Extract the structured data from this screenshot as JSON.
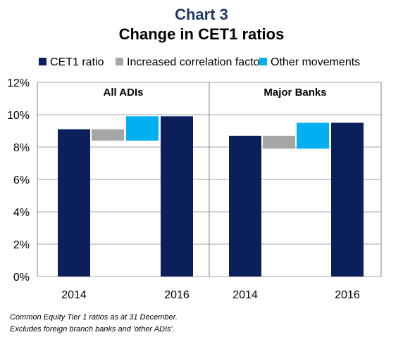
{
  "chart": {
    "title": "Chart 3",
    "subtitle": "Change in CET1 ratios",
    "footnotes": [
      "Common Equity Tier 1 ratios as at 31 December.",
      "Excludes foreign branch banks and 'other ADIs'."
    ]
  },
  "colors": {
    "title": "#1f3864",
    "cet1": "#0b1f5b",
    "correlation": "#a6a6a6",
    "other": "#00b0f0",
    "grid": "#a6a6a6",
    "axis": "#7f7f7f"
  },
  "chart_data": {
    "type": "bar",
    "subtype": "waterfall",
    "title": "Chart 3",
    "subtitle": "Change in CET1 ratios",
    "legend": {
      "placement": "top",
      "entries": [
        {
          "name": "CET1 ratio",
          "color": "#0b1f5b"
        },
        {
          "name": "Increased correlation factor",
          "color": "#a6a6a6"
        },
        {
          "name": "Other movements",
          "color": "#00b0f0"
        }
      ]
    },
    "ylim": [
      0,
      12
    ],
    "yticks": [
      0,
      2,
      4,
      6,
      8,
      10,
      12
    ],
    "ytick_labels": [
      "0%",
      "2%",
      "4%",
      "6%",
      "8%",
      "10%",
      "12%"
    ],
    "grid": true,
    "panels": [
      {
        "name": "All ADIs",
        "bars": [
          {
            "label": "2014",
            "series": "CET1 ratio",
            "base": 0,
            "top": 9.1
          },
          {
            "label": "",
            "series": "Increased correlation factor",
            "base": 8.4,
            "top": 9.1
          },
          {
            "label": "",
            "series": "Other movements",
            "base": 8.4,
            "top": 9.9
          },
          {
            "label": "2016",
            "series": "CET1 ratio",
            "base": 0,
            "top": 9.9
          }
        ]
      },
      {
        "name": "Major Banks",
        "bars": [
          {
            "label": "2014",
            "series": "CET1 ratio",
            "base": 0,
            "top": 8.7
          },
          {
            "label": "",
            "series": "Increased correlation factor",
            "base": 7.9,
            "top": 8.7
          },
          {
            "label": "",
            "series": "Other movements",
            "base": 7.9,
            "top": 9.5
          },
          {
            "label": "2016",
            "series": "CET1 ratio",
            "base": 0,
            "top": 9.5
          }
        ]
      }
    ]
  }
}
